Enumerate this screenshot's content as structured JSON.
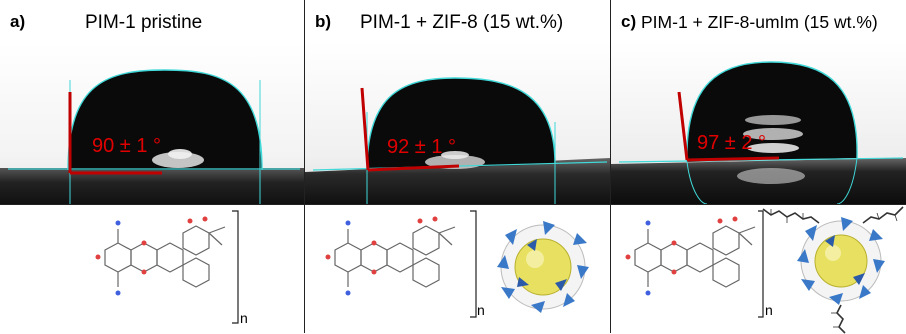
{
  "panels": [
    {
      "letter": "a)",
      "title": "PIM-1 pristine",
      "angle": "90 ± 1 °",
      "subscript": "n"
    },
    {
      "letter": "b)",
      "title": "PIM-1 + ZIF-8 (15 wt.%)",
      "angle": "92 ± 1 °",
      "subscript": "n"
    },
    {
      "letter": "c)",
      "title": "PIM-1 + ZIF-8-umIm (15 wt.%)",
      "angle": "97 ± 2 °",
      "subscript": "n"
    }
  ],
  "colors": {
    "angle_text": "#e00000",
    "tangent_line": "#c00000",
    "droplet": "#0a0a0a",
    "fit_outline": "#40d8d8",
    "background": "#ffffff",
    "zif_core": "#e8e060",
    "zif_tetrahedra": "#3a78c8"
  }
}
